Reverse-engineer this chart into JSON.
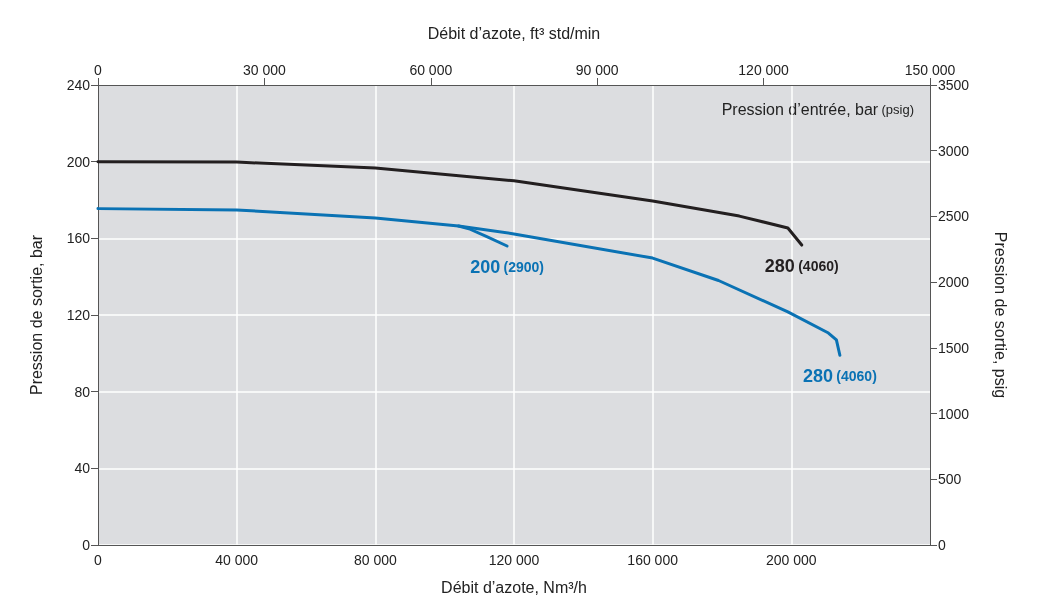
{
  "chart_data": {
    "type": "line",
    "xlabel": "Débit d’azote, Nm³/h",
    "x2label": "Débit d’azote, ft³ std/min",
    "ylabel": "Pression de sortie, bar",
    "y2label": "Pression de sortie, psig",
    "legend_title": "Pression d’entrée, bar (psig)",
    "xlim": [
      0,
      240000
    ],
    "xticks": [
      0,
      {
        "value": 40000,
        "label": "40 000"
      },
      {
        "value": 80000,
        "label": "80 000"
      },
      {
        "value": 120000,
        "label": "120 000"
      },
      {
        "value": 160000,
        "label": "160 000"
      },
      {
        "value": 200000,
        "label": "200 000"
      }
    ],
    "x2lim": [
      0,
      150000
    ],
    "x2ticks": [
      0,
      {
        "value": 30000,
        "label": "30 000"
      },
      {
        "value": 60000,
        "label": "60 000"
      },
      {
        "value": 90000,
        "label": "90 000"
      },
      {
        "value": 120000,
        "label": "120 000"
      },
      {
        "value": 150000,
        "label": "150 000"
      }
    ],
    "ylim": [
      0,
      240
    ],
    "yticks": [
      0,
      40,
      80,
      120,
      160,
      200,
      240
    ],
    "y2lim": [
      0,
      3500
    ],
    "y2ticks": [
      0,
      500,
      1000,
      1500,
      2000,
      2500,
      3000,
      3500
    ],
    "grid": true,
    "legend": false,
    "marker": "none",
    "line_style": "solid",
    "series": [
      {
        "name": "280 (4060)",
        "color": "#231f20",
        "x": [
          0,
          40000,
          80000,
          120000,
          160000,
          185000,
          199000,
          203000
        ],
        "values": [
          200,
          199.8,
          196.7,
          190,
          179.5,
          171.6,
          165.4,
          156.5
        ]
      },
      {
        "name": "280 (4060)",
        "color": "#0a72b4",
        "x": [
          0,
          40000,
          80000,
          104000,
          120000,
          160000,
          179000,
          199000,
          210700,
          213000,
          214000
        ],
        "values": [
          175.5,
          174.8,
          170.6,
          166.4,
          162.3,
          149.7,
          138,
          121.6,
          110.6,
          107,
          99
        ]
      },
      {
        "name": "200 (2900)",
        "color": "#0a72b4",
        "x": [
          104000,
          107000,
          112000,
          118000
        ],
        "values": [
          166.4,
          165,
          161,
          156
        ]
      }
    ]
  }
}
